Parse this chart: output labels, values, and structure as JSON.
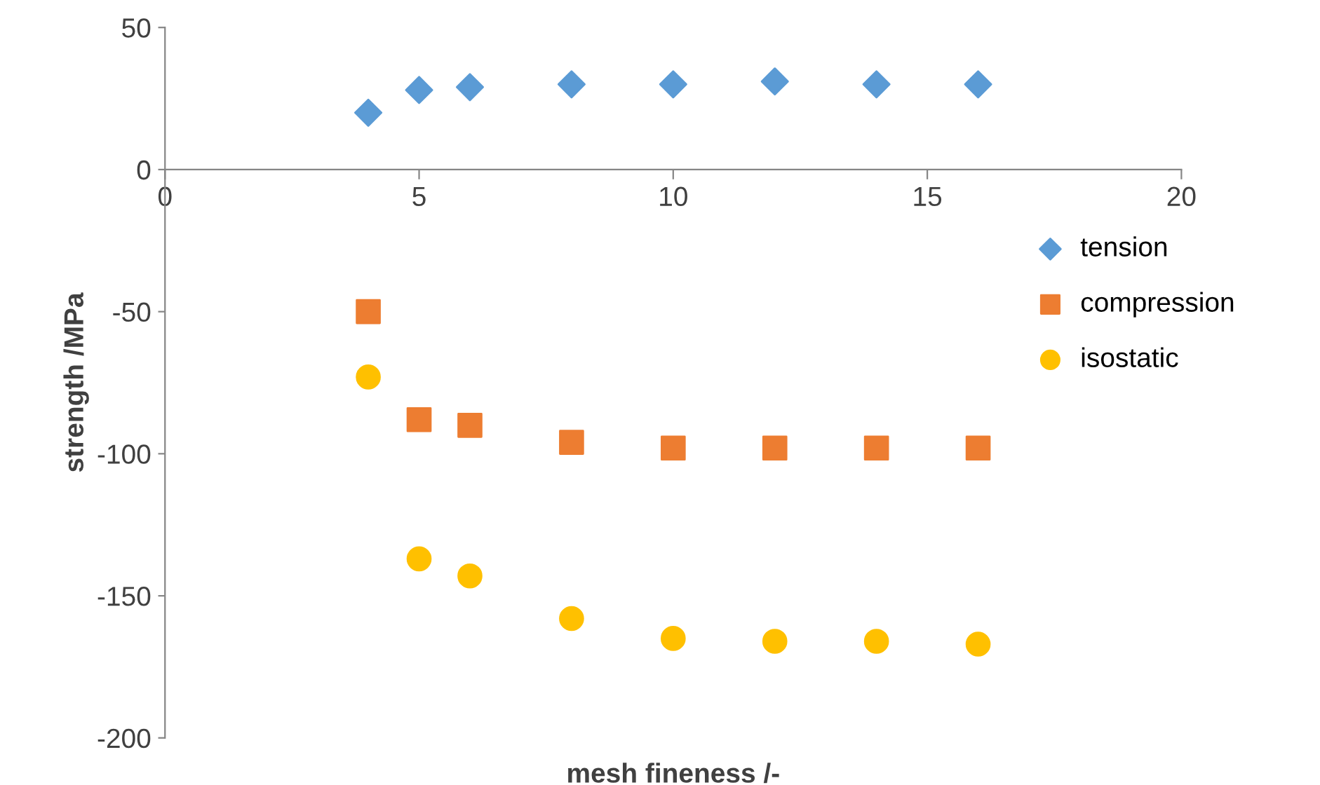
{
  "chart_data": {
    "type": "scatter",
    "xlabel": "mesh fineness /-",
    "ylabel": "strength /MPa",
    "x": [
      4,
      5,
      6,
      8,
      10,
      12,
      14,
      16
    ],
    "series": [
      {
        "name": "tension",
        "color": "#5b9bd5",
        "marker": "diamond",
        "values": [
          20,
          28,
          29,
          30,
          30,
          31,
          30,
          30
        ]
      },
      {
        "name": "compression",
        "color": "#ed7d31",
        "marker": "square",
        "values": [
          -50,
          -88,
          -90,
          -96,
          -98,
          -98,
          -98,
          -98
        ]
      },
      {
        "name": "isostatic",
        "color": "#ffc000",
        "marker": "circle",
        "values": [
          -73,
          -137,
          -143,
          -158,
          -165,
          -166,
          -166,
          -167
        ]
      }
    ],
    "xlim": [
      0,
      20
    ],
    "xticks": [
      0,
      5,
      10,
      15,
      20
    ],
    "ylim": [
      -200,
      50
    ],
    "yticks": [
      -200,
      -150,
      -100,
      -50,
      0,
      50
    ],
    "grid": false,
    "legend": "right"
  }
}
